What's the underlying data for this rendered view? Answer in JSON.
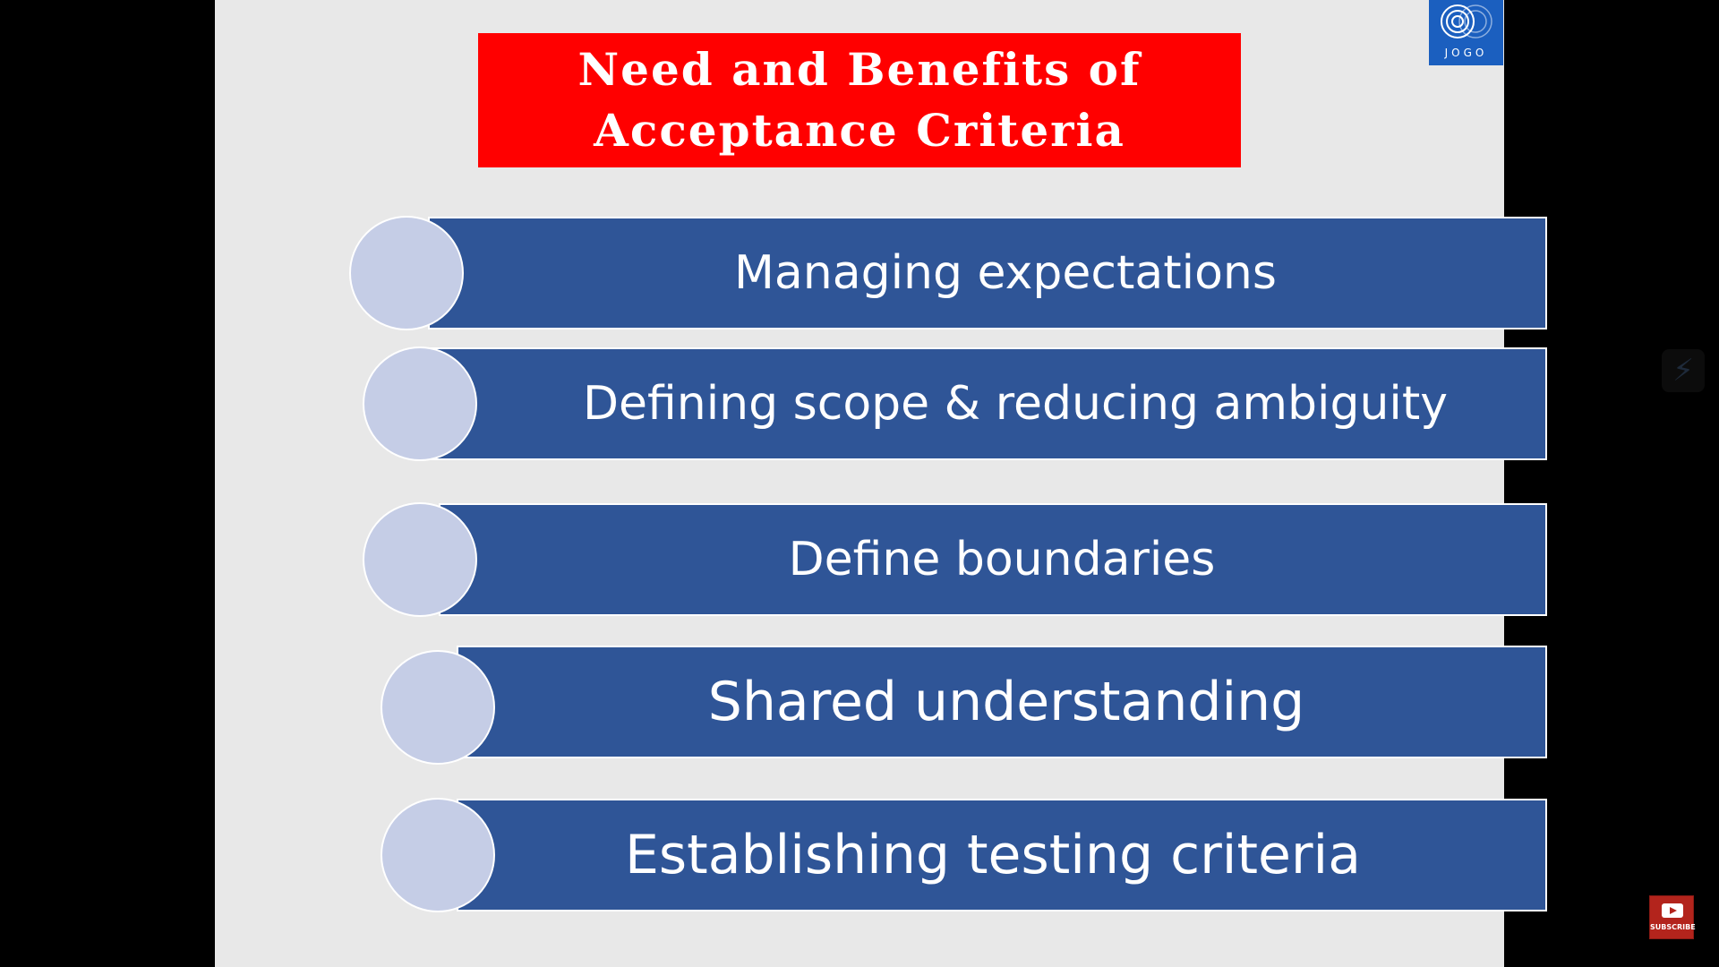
{
  "slide": {
    "title": "Need and Benefits of\nAcceptance Criteria",
    "items": [
      {
        "label": "Managing expectations"
      },
      {
        "label": "Defining scope & reducing ambiguity"
      },
      {
        "label": "Define boundaries"
      },
      {
        "label": "Shared understanding"
      },
      {
        "label": "Establishing testing criteria"
      }
    ]
  },
  "logo": {
    "text": "JOGO",
    "icon": "concentric-circles-icon"
  },
  "overlay": {
    "side_control_icon": "lightning-icon",
    "subscribe_label": "SUBSCRIBE",
    "subscribe_icon": "youtube-play-icon"
  },
  "colors": {
    "title_background": "#ff0000",
    "bar_background": "#2f5597",
    "circle_fill": "#c5cde6",
    "slide_background": "#e8e8e8",
    "logo_background": "#1b5fbf"
  }
}
